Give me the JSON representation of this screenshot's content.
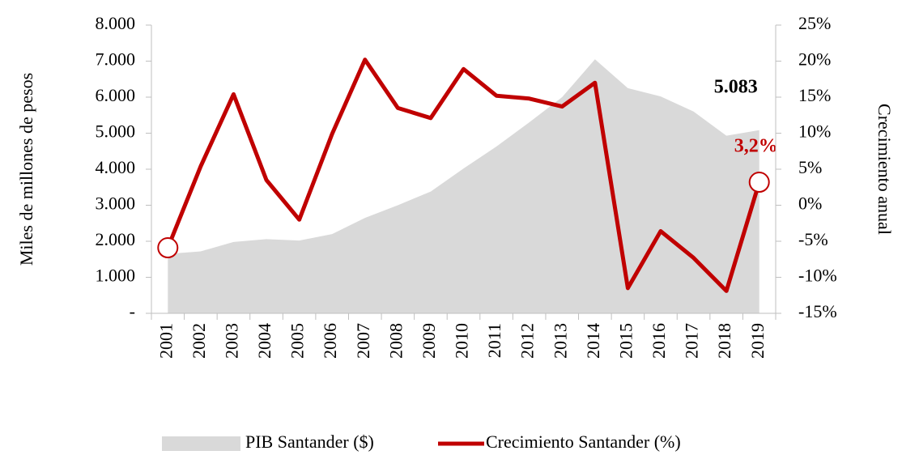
{
  "chart_data": {
    "type": "area-line",
    "y_label": "Miles de millones de pesos",
    "y2_label": "Crecimiento anual",
    "categories": [
      "2001",
      "2002",
      "2003",
      "2004",
      "2005",
      "2006",
      "2007",
      "2008",
      "2009",
      "2010",
      "2011",
      "2012",
      "2013",
      "2014",
      "2015",
      "2016",
      "2017",
      "2018",
      "2019"
    ],
    "series": [
      {
        "name": "PIB Santander ($)",
        "type": "area",
        "color": "#d9d9d9",
        "values": [
          1650,
          1720,
          1980,
          2060,
          2020,
          2200,
          2650,
          3000,
          3380,
          4020,
          4630,
          5300,
          6000,
          7050,
          6250,
          6020,
          5600,
          4930,
          5083
        ],
        "value_labels": [
          null,
          null,
          null,
          null,
          null,
          null,
          null,
          null,
          null,
          null,
          null,
          null,
          null,
          null,
          null,
          null,
          null,
          null,
          "5.083"
        ]
      },
      {
        "name": "Crecimiento Santander (%)",
        "type": "line",
        "axis": "y2",
        "color": "#c00000",
        "values": [
          -5.9,
          5.4,
          15.4,
          3.5,
          -2.0,
          9.9,
          20.2,
          13.5,
          12.1,
          18.9,
          15.2,
          14.8,
          13.7,
          17.0,
          -11.5,
          -3.6,
          -7.3,
          -11.9,
          3.2
        ],
        "value_labels": [
          null,
          null,
          null,
          null,
          null,
          null,
          null,
          null,
          null,
          null,
          null,
          null,
          null,
          null,
          null,
          null,
          null,
          null,
          "3,2%"
        ],
        "highlight": [
          0,
          18
        ]
      }
    ],
    "ylim": [
      0,
      8000
    ],
    "yticks": [
      {
        "value": 0,
        "label": "-"
      },
      {
        "value": 1000,
        "label": "1.000"
      },
      {
        "value": 2000,
        "label": "2.000"
      },
      {
        "value": 3000,
        "label": "3.000"
      },
      {
        "value": 4000,
        "label": "4.000"
      },
      {
        "value": 5000,
        "label": "5.000"
      },
      {
        "value": 6000,
        "label": "6.000"
      },
      {
        "value": 7000,
        "label": "7.000"
      },
      {
        "value": 8000,
        "label": "8.000"
      }
    ],
    "y2lim": [
      -15,
      25
    ],
    "y2ticks": [
      {
        "value": -15,
        "label": "-15%"
      },
      {
        "value": -10,
        "label": "-10%"
      },
      {
        "value": -5,
        "label": "-5%"
      },
      {
        "value": 0,
        "label": "0%"
      },
      {
        "value": 5,
        "label": "5%"
      },
      {
        "value": 10,
        "label": "10%"
      },
      {
        "value": 15,
        "label": "15%"
      },
      {
        "value": 20,
        "label": "20%"
      },
      {
        "value": 25,
        "label": "25%"
      }
    ],
    "legend": "bottom"
  }
}
